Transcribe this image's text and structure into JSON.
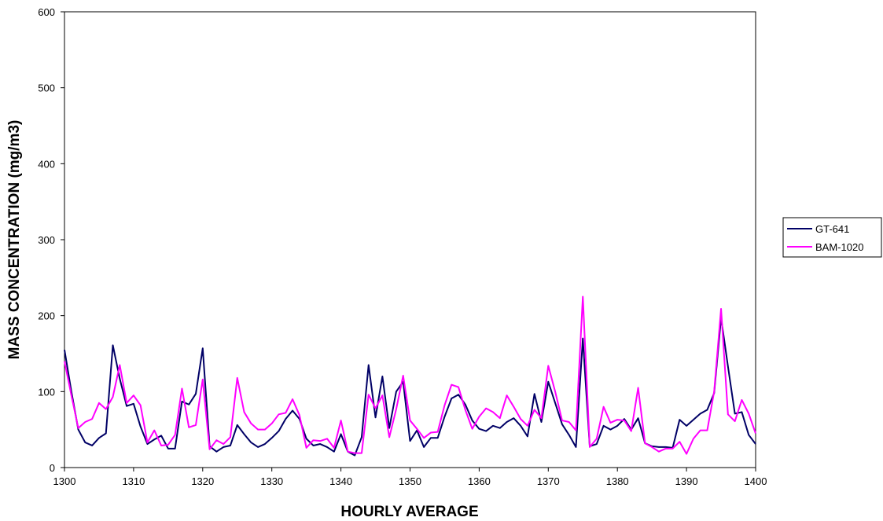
{
  "chart_data": {
    "type": "line",
    "title": "",
    "xlabel": "HOURLY AVERAGE",
    "ylabel": "MASS CONCENTRATION (mg/m3)",
    "xlim": [
      1300,
      1400
    ],
    "ylim": [
      0,
      600
    ],
    "xticks": [
      1300,
      1310,
      1320,
      1330,
      1340,
      1350,
      1360,
      1370,
      1380,
      1390,
      1400
    ],
    "yticks": [
      0,
      100,
      200,
      300,
      400,
      500,
      600
    ],
    "grid": false,
    "legend_position": "right",
    "x_start": 1300,
    "x_step": 1,
    "series": [
      {
        "name": "GT-641",
        "color": "#000066",
        "values": [
          155,
          100,
          50,
          33,
          29,
          39,
          45,
          161,
          117,
          81,
          84,
          54,
          31,
          37,
          42,
          25,
          25,
          87,
          83,
          97,
          157,
          28,
          21,
          27,
          29,
          56,
          44,
          33,
          27,
          31,
          39,
          48,
          64,
          75,
          64,
          38,
          29,
          31,
          27,
          21,
          44,
          21,
          16,
          40,
          135,
          66,
          120,
          52,
          100,
          113,
          35,
          49,
          27,
          39,
          39,
          67,
          91,
          96,
          83,
          62,
          51,
          48,
          55,
          52,
          60,
          65,
          55,
          41,
          97,
          60,
          113,
          85,
          57,
          43,
          27,
          170,
          28,
          31,
          55,
          50,
          55,
          64,
          50,
          65,
          32,
          28,
          27,
          27,
          26,
          63,
          55,
          63,
          71,
          76,
          98,
          197,
          133,
          71,
          73,
          43,
          31
        ]
      },
      {
        "name": "BAM-1020",
        "color": "#ff00ff",
        "values": [
          140,
          95,
          52,
          60,
          64,
          85,
          77,
          93,
          135,
          85,
          95,
          82,
          33,
          49,
          29,
          30,
          43,
          104,
          53,
          56,
          116,
          24,
          36,
          31,
          40,
          118,
          73,
          58,
          50,
          50,
          58,
          70,
          72,
          90,
          69,
          26,
          36,
          35,
          38,
          26,
          62,
          21,
          19,
          19,
          96,
          78,
          95,
          40,
          77,
          121,
          62,
          51,
          39,
          46,
          47,
          82,
          109,
          106,
          76,
          51,
          67,
          78,
          73,
          65,
          95,
          80,
          64,
          55,
          76,
          65,
          134,
          100,
          62,
          60,
          49,
          225,
          27,
          38,
          80,
          59,
          63,
          62,
          48,
          105,
          32,
          27,
          21,
          25,
          25,
          34,
          18,
          38,
          49,
          49,
          100,
          209,
          70,
          61,
          89,
          71,
          45
        ]
      }
    ]
  }
}
